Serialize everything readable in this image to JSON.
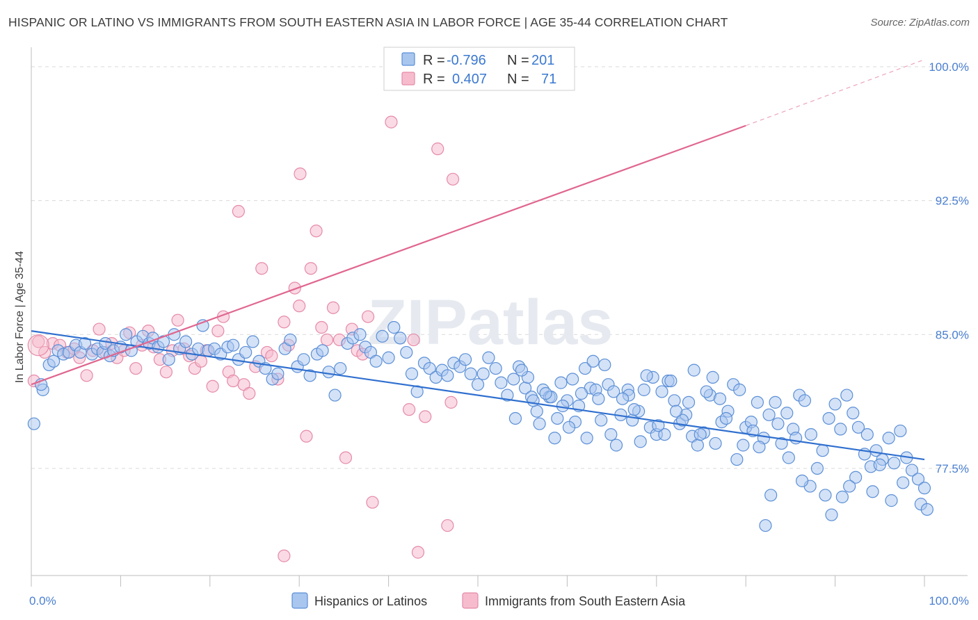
{
  "title": "HISPANIC OR LATINO VS IMMIGRANTS FROM SOUTH EASTERN ASIA IN LABOR FORCE | AGE 35-44 CORRELATION CHART",
  "source": "Source: ZipAtlas.com",
  "watermark": "ZIPatlas",
  "colors": {
    "blue_fill": "#a9c6ef",
    "blue_stroke": "#5b8fd6",
    "blue_line": "#2f6fcf",
    "pink_fill": "#f6bccd",
    "pink_stroke": "#e58aa8",
    "pink_line": "#e0668f",
    "grid": "#d9d9d9",
    "tick_text": "#4a7fd0"
  },
  "legend": {
    "rows": [
      {
        "r_label": "R = ",
        "r_value": "-0.796",
        "n_label": "N = ",
        "n_value": "201"
      },
      {
        "r_label": "R = ",
        "r_value": "0.407",
        "n_label": "N = ",
        "n_value": "71"
      }
    ]
  },
  "chart_data": {
    "type": "scatter",
    "title": "HISPANIC OR LATINO VS IMMIGRANTS FROM SOUTH EASTERN ASIA IN LABOR FORCE | AGE 35-44 CORRELATION CHART",
    "xlabel": "",
    "ylabel": "In Labor Force | Age 35-44",
    "xlim": [
      0,
      100
    ],
    "ylim": [
      71.5,
      101
    ],
    "x_tick_labels": [
      "0.0%",
      "100.0%"
    ],
    "y_ticks": [
      77.5,
      85.0,
      92.5,
      100.0
    ],
    "y_tick_labels": [
      "77.5%",
      "85.0%",
      "92.5%",
      "100.0%"
    ],
    "grid": "horizontal dashed",
    "legend_position": "top-center",
    "series": [
      {
        "name": "Hispanics or Latinos",
        "r": -0.796,
        "n": 201,
        "trend": {
          "x": [
            0,
            100
          ],
          "y": [
            85.2,
            78.0
          ]
        },
        "points": [
          [
            0.3,
            80.0
          ],
          [
            1.3,
            81.9
          ],
          [
            1.1,
            82.2
          ],
          [
            2.0,
            83.3
          ],
          [
            2.5,
            83.5
          ],
          [
            3.0,
            84.1
          ],
          [
            3.6,
            83.9
          ],
          [
            4.2,
            84.0
          ],
          [
            5.0,
            84.4
          ],
          [
            5.5,
            84.0
          ],
          [
            6.0,
            84.5
          ],
          [
            6.8,
            83.9
          ],
          [
            7.4,
            84.2
          ],
          [
            8.0,
            84.0
          ],
          [
            8.3,
            84.5
          ],
          [
            8.8,
            83.8
          ],
          [
            9.2,
            84.1
          ],
          [
            10.0,
            84.3
          ],
          [
            10.6,
            85.0
          ],
          [
            11.2,
            84.1
          ],
          [
            11.8,
            84.6
          ],
          [
            12.5,
            84.9
          ],
          [
            13.2,
            84.5
          ],
          [
            13.6,
            84.8
          ],
          [
            14.2,
            84.3
          ],
          [
            14.8,
            84.6
          ],
          [
            15.4,
            83.6
          ],
          [
            16.0,
            85.0
          ],
          [
            16.6,
            84.2
          ],
          [
            17.3,
            84.6
          ],
          [
            18.0,
            83.9
          ],
          [
            18.7,
            84.2
          ],
          [
            19.2,
            85.5
          ],
          [
            19.8,
            84.1
          ],
          [
            20.5,
            84.2
          ],
          [
            21.2,
            83.9
          ],
          [
            22.0,
            84.3
          ],
          [
            22.6,
            84.4
          ],
          [
            23.2,
            83.6
          ],
          [
            24.0,
            84.0
          ],
          [
            24.8,
            84.6
          ],
          [
            25.5,
            83.5
          ],
          [
            26.2,
            83.1
          ],
          [
            27.0,
            82.5
          ],
          [
            27.6,
            82.8
          ],
          [
            28.4,
            84.2
          ],
          [
            29.0,
            84.7
          ],
          [
            29.8,
            83.2
          ],
          [
            30.5,
            83.6
          ],
          [
            31.2,
            82.7
          ],
          [
            32.0,
            83.9
          ],
          [
            32.6,
            84.1
          ],
          [
            33.3,
            82.9
          ],
          [
            34.0,
            81.6
          ],
          [
            34.6,
            83.1
          ],
          [
            35.4,
            84.5
          ],
          [
            36.0,
            84.8
          ],
          [
            36.8,
            85.0
          ],
          [
            37.4,
            84.3
          ],
          [
            38.0,
            84.0
          ],
          [
            38.6,
            83.5
          ],
          [
            39.3,
            84.9
          ],
          [
            40.0,
            83.7
          ],
          [
            40.6,
            85.4
          ],
          [
            41.3,
            84.8
          ],
          [
            42.0,
            84.0
          ],
          [
            42.6,
            82.8
          ],
          [
            43.2,
            81.8
          ],
          [
            44.0,
            83.4
          ],
          [
            44.6,
            83.1
          ],
          [
            45.3,
            82.6
          ],
          [
            46.0,
            83.0
          ],
          [
            46.6,
            82.7
          ],
          [
            47.3,
            83.4
          ],
          [
            48.0,
            83.2
          ],
          [
            48.6,
            83.6
          ],
          [
            49.2,
            82.8
          ],
          [
            50.0,
            82.2
          ],
          [
            50.6,
            82.8
          ],
          [
            51.2,
            83.7
          ],
          [
            52.0,
            83.1
          ],
          [
            52.6,
            82.3
          ],
          [
            53.3,
            81.6
          ],
          [
            54.0,
            82.5
          ],
          [
            54.6,
            83.2
          ],
          [
            55.3,
            82.0
          ],
          [
            56.0,
            81.5
          ],
          [
            56.6,
            80.7
          ],
          [
            57.3,
            81.9
          ],
          [
            58.0,
            81.5
          ],
          [
            58.6,
            79.2
          ],
          [
            59.3,
            82.3
          ],
          [
            60.0,
            81.3
          ],
          [
            60.6,
            82.5
          ],
          [
            61.3,
            81.0
          ],
          [
            62.0,
            83.1
          ],
          [
            62.6,
            82.0
          ],
          [
            63.2,
            81.9
          ],
          [
            63.8,
            80.2
          ],
          [
            64.6,
            82.2
          ],
          [
            65.2,
            81.8
          ],
          [
            66.0,
            80.5
          ],
          [
            66.8,
            81.9
          ],
          [
            67.3,
            80.2
          ],
          [
            68.0,
            80.7
          ],
          [
            68.6,
            81.9
          ],
          [
            69.3,
            79.8
          ],
          [
            70.0,
            79.4
          ],
          [
            70.6,
            81.8
          ],
          [
            71.3,
            82.4
          ],
          [
            72.0,
            81.3
          ],
          [
            72.6,
            80.0
          ],
          [
            73.3,
            80.5
          ],
          [
            74.0,
            79.3
          ],
          [
            74.6,
            78.8
          ],
          [
            75.3,
            79.5
          ],
          [
            76.0,
            81.6
          ],
          [
            76.6,
            78.9
          ],
          [
            77.3,
            80.1
          ],
          [
            78.0,
            80.7
          ],
          [
            78.6,
            82.2
          ],
          [
            79.3,
            81.9
          ],
          [
            80.0,
            79.8
          ],
          [
            80.6,
            80.1
          ],
          [
            81.3,
            81.2
          ],
          [
            82.0,
            79.2
          ],
          [
            82.6,
            80.5
          ],
          [
            83.3,
            81.2
          ],
          [
            84.0,
            78.9
          ],
          [
            84.6,
            80.6
          ],
          [
            85.3,
            79.7
          ],
          [
            86.0,
            81.6
          ],
          [
            86.6,
            81.3
          ],
          [
            87.3,
            79.4
          ],
          [
            88.0,
            77.5
          ],
          [
            88.6,
            78.5
          ],
          [
            89.3,
            80.3
          ],
          [
            90.0,
            81.1
          ],
          [
            90.6,
            79.7
          ],
          [
            91.3,
            81.6
          ],
          [
            92.0,
            80.6
          ],
          [
            92.6,
            79.8
          ],
          [
            93.3,
            78.3
          ],
          [
            94.0,
            77.6
          ],
          [
            94.6,
            78.5
          ],
          [
            95.3,
            78.0
          ],
          [
            96.0,
            79.2
          ],
          [
            96.6,
            77.8
          ],
          [
            97.3,
            79.6
          ],
          [
            98.0,
            78.1
          ],
          [
            98.6,
            77.4
          ],
          [
            99.3,
            76.9
          ],
          [
            100.0,
            76.4
          ],
          [
            99.6,
            75.5
          ],
          [
            100.3,
            75.2
          ],
          [
            97.6,
            76.7
          ],
          [
            96.3,
            75.7
          ],
          [
            95.0,
            77.7
          ],
          [
            94.2,
            76.2
          ],
          [
            93.6,
            79.4
          ],
          [
            92.3,
            77.0
          ],
          [
            91.6,
            76.5
          ],
          [
            90.8,
            75.9
          ],
          [
            89.6,
            74.9
          ],
          [
            88.9,
            76.0
          ],
          [
            87.2,
            76.5
          ],
          [
            86.3,
            76.8
          ],
          [
            85.6,
            79.2
          ],
          [
            84.8,
            78.1
          ],
          [
            83.6,
            80.0
          ],
          [
            82.8,
            76.0
          ],
          [
            82.2,
            74.3
          ],
          [
            81.5,
            78.7
          ],
          [
            80.8,
            79.6
          ],
          [
            79.7,
            78.8
          ],
          [
            79.0,
            78.0
          ],
          [
            77.8,
            80.3
          ],
          [
            77.1,
            81.4
          ],
          [
            76.3,
            82.6
          ],
          [
            75.6,
            81.8
          ],
          [
            74.9,
            79.4
          ],
          [
            74.2,
            83.0
          ],
          [
            73.6,
            81.2
          ],
          [
            72.9,
            80.2
          ],
          [
            72.2,
            80.7
          ],
          [
            71.6,
            82.4
          ],
          [
            70.9,
            79.4
          ],
          [
            70.2,
            79.9
          ],
          [
            69.6,
            82.6
          ],
          [
            68.9,
            82.7
          ],
          [
            68.2,
            79.0
          ],
          [
            67.5,
            80.8
          ],
          [
            66.9,
            81.6
          ],
          [
            66.2,
            81.4
          ],
          [
            65.5,
            78.8
          ],
          [
            64.9,
            79.4
          ],
          [
            64.2,
            83.3
          ],
          [
            63.5,
            81.4
          ],
          [
            62.9,
            83.5
          ],
          [
            62.2,
            79.2
          ],
          [
            61.6,
            81.7
          ],
          [
            60.9,
            80.1
          ],
          [
            60.2,
            79.8
          ],
          [
            59.5,
            81.0
          ],
          [
            58.9,
            80.3
          ],
          [
            58.2,
            81.5
          ],
          [
            57.6,
            81.7
          ],
          [
            56.9,
            80.0
          ],
          [
            56.2,
            81.3
          ],
          [
            55.6,
            82.6
          ],
          [
            54.9,
            83.0
          ],
          [
            54.2,
            80.3
          ]
        ]
      },
      {
        "name": "Immigrants from South Eastern Asia",
        "r": 0.407,
        "n": 71,
        "trend": {
          "x": [
            0,
            80
          ],
          "y": [
            82.2,
            96.7
          ]
        },
        "trend_dashed": {
          "x": [
            80,
            100
          ],
          "y": [
            96.7,
            100.4
          ]
        },
        "points": [
          [
            0.3,
            82.4
          ],
          [
            0.8,
            84.6
          ],
          [
            1.5,
            84.0
          ],
          [
            2.4,
            84.5
          ],
          [
            3.2,
            84.4
          ],
          [
            4.0,
            84.0
          ],
          [
            4.8,
            84.2
          ],
          [
            5.4,
            83.7
          ],
          [
            6.2,
            82.7
          ],
          [
            6.9,
            84.1
          ],
          [
            7.6,
            85.3
          ],
          [
            8.3,
            84.0
          ],
          [
            9.0,
            84.5
          ],
          [
            9.6,
            83.7
          ],
          [
            10.4,
            84.1
          ],
          [
            11.0,
            85.1
          ],
          [
            11.7,
            83.1
          ],
          [
            12.4,
            84.4
          ],
          [
            13.1,
            85.2
          ],
          [
            13.7,
            84.3
          ],
          [
            14.4,
            83.6
          ],
          [
            15.1,
            82.9
          ],
          [
            15.8,
            84.1
          ],
          [
            16.4,
            85.8
          ],
          [
            17.1,
            84.2
          ],
          [
            17.7,
            83.8
          ],
          [
            18.3,
            83.1
          ],
          [
            19.0,
            83.5
          ],
          [
            19.6,
            84.1
          ],
          [
            20.3,
            82.1
          ],
          [
            20.9,
            85.2
          ],
          [
            21.5,
            86.0
          ],
          [
            22.1,
            82.9
          ],
          [
            22.6,
            82.4
          ],
          [
            23.2,
            91.9
          ],
          [
            23.8,
            82.2
          ],
          [
            24.4,
            81.7
          ],
          [
            25.1,
            83.2
          ],
          [
            25.8,
            88.7
          ],
          [
            26.4,
            84.0
          ],
          [
            26.9,
            83.8
          ],
          [
            27.6,
            82.5
          ],
          [
            28.3,
            85.7
          ],
          [
            28.8,
            84.4
          ],
          [
            29.5,
            87.6
          ],
          [
            30.1,
            94.0
          ],
          [
            30.8,
            79.3
          ],
          [
            31.3,
            88.7
          ],
          [
            31.9,
            90.8
          ],
          [
            32.5,
            85.4
          ],
          [
            33.1,
            84.7
          ],
          [
            33.8,
            86.5
          ],
          [
            34.5,
            84.7
          ],
          [
            35.2,
            78.1
          ],
          [
            35.9,
            85.3
          ],
          [
            36.5,
            84.1
          ],
          [
            37.1,
            83.9
          ],
          [
            37.7,
            86.0
          ],
          [
            38.2,
            75.6
          ],
          [
            28.3,
            72.6
          ],
          [
            30.0,
            86.6
          ],
          [
            40.3,
            96.9
          ],
          [
            40.8,
            100.0
          ],
          [
            42.3,
            80.8
          ],
          [
            42.8,
            84.7
          ],
          [
            43.3,
            72.8
          ],
          [
            44.1,
            80.4
          ],
          [
            45.5,
            95.4
          ],
          [
            46.6,
            74.3
          ],
          [
            47.0,
            81.2
          ],
          [
            47.2,
            93.7
          ],
          [
            48.5,
            100.0
          ]
        ]
      }
    ]
  },
  "bottom_legend": {
    "items": [
      "Hispanics or Latinos",
      "Immigrants from South Eastern Asia"
    ]
  }
}
